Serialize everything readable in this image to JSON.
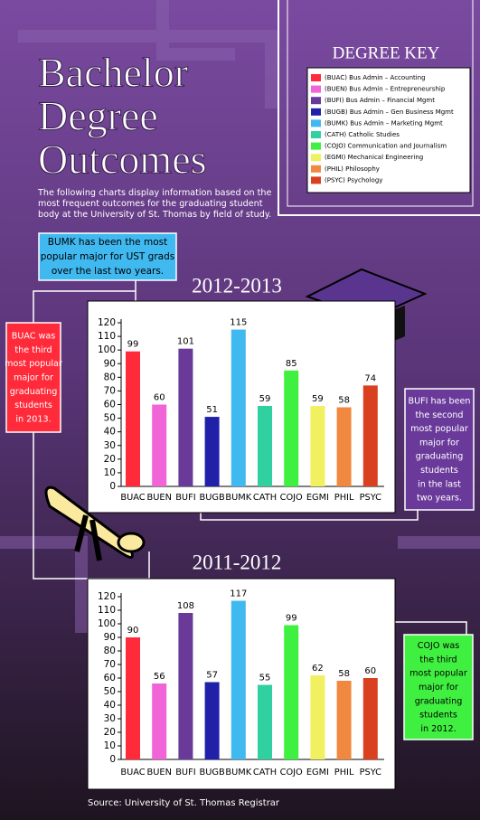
{
  "header": {
    "title": [
      "Bachelor",
      "Degree",
      "Outcomes"
    ],
    "description": [
      "The following charts display information based on the",
      "most frequent outcomes for the graduating student",
      "body at the University of St. Thomas by field of study."
    ]
  },
  "degree_key": {
    "title": "DEGREE KEY",
    "entries": [
      {
        "label": "(BUAC) Bus Admin – Accounting",
        "color": "#ff2a3a"
      },
      {
        "label": "(BUEN) Bus Admin – Entrepreneurship",
        "color": "#f064d8"
      },
      {
        "label": "(BUFI) Bus Admin – Financial Mgmt",
        "color": "#6a3a9a"
      },
      {
        "label": "(BUGB) Bus Admin – Gen Business Mgmt",
        "color": "#2020a8"
      },
      {
        "label": "(BUMK) Bus Admin – Marketing Mgmt",
        "color": "#40b8f0"
      },
      {
        "label": "(CATH) Catholic Studies",
        "color": "#30d0a0"
      },
      {
        "label": "(COJO) Communication and Journalism",
        "color": "#40f040"
      },
      {
        "label": "(EGMI) Mechanical Engineering",
        "color": "#f0f060"
      },
      {
        "label": "(PHIL) Philosophy",
        "color": "#f08840"
      },
      {
        "label": "(PSYC) Psychology",
        "color": "#d84020"
      }
    ]
  },
  "callouts": [
    {
      "lines": [
        "BUMK has been the most",
        "popular major for UST grads",
        "over the last two years."
      ],
      "color": "#40b8f0"
    },
    {
      "lines": [
        "BUAC was",
        "the third",
        "most popular",
        "major for",
        "graduating",
        "students",
        "in 2013."
      ],
      "color": "#ff2a3a"
    },
    {
      "lines": [
        "BUFI has been",
        "the second",
        "most popular",
        "major for",
        "graduating",
        "students",
        "in the last",
        "two years."
      ],
      "color": "#6a3a9a"
    },
    {
      "lines": [
        "COJO was",
        "the third",
        "most popular",
        "major for",
        "graduating",
        "students",
        "in 2012."
      ],
      "color": "#40f040"
    }
  ],
  "chart_data": [
    {
      "type": "bar",
      "title": "2012-2013",
      "categories": [
        "BUAC",
        "BUEN",
        "BUFI",
        "BUGB",
        "BUMK",
        "CATH",
        "COJO",
        "EGMI",
        "PHIL",
        "PSYC"
      ],
      "values": [
        99,
        60,
        101,
        51,
        115,
        59,
        85,
        59,
        58,
        74
      ],
      "colors": [
        "#ff2a3a",
        "#f064d8",
        "#6a3a9a",
        "#2020a8",
        "#40b8f0",
        "#30d0a0",
        "#40f040",
        "#f0f060",
        "#f08840",
        "#d84020"
      ],
      "ylim": [
        0,
        120
      ],
      "yticks": [
        0,
        10,
        20,
        30,
        40,
        50,
        60,
        70,
        80,
        90,
        100,
        110,
        120
      ]
    },
    {
      "type": "bar",
      "title": "2011-2012",
      "categories": [
        "BUAC",
        "BUEN",
        "BUFI",
        "BUGB",
        "BUMK",
        "CATH",
        "COJO",
        "EGMI",
        "PHIL",
        "PSYC"
      ],
      "values": [
        90,
        56,
        108,
        57,
        117,
        55,
        99,
        62,
        58,
        60
      ],
      "colors": [
        "#ff2a3a",
        "#f064d8",
        "#6a3a9a",
        "#2020a8",
        "#40b8f0",
        "#30d0a0",
        "#40f040",
        "#f0f060",
        "#f08840",
        "#d84020"
      ],
      "ylim": [
        0,
        120
      ],
      "yticks": [
        0,
        10,
        20,
        30,
        40,
        50,
        60,
        70,
        80,
        90,
        100,
        110,
        120
      ]
    }
  ],
  "source": "Source: University of St. Thomas Registrar"
}
